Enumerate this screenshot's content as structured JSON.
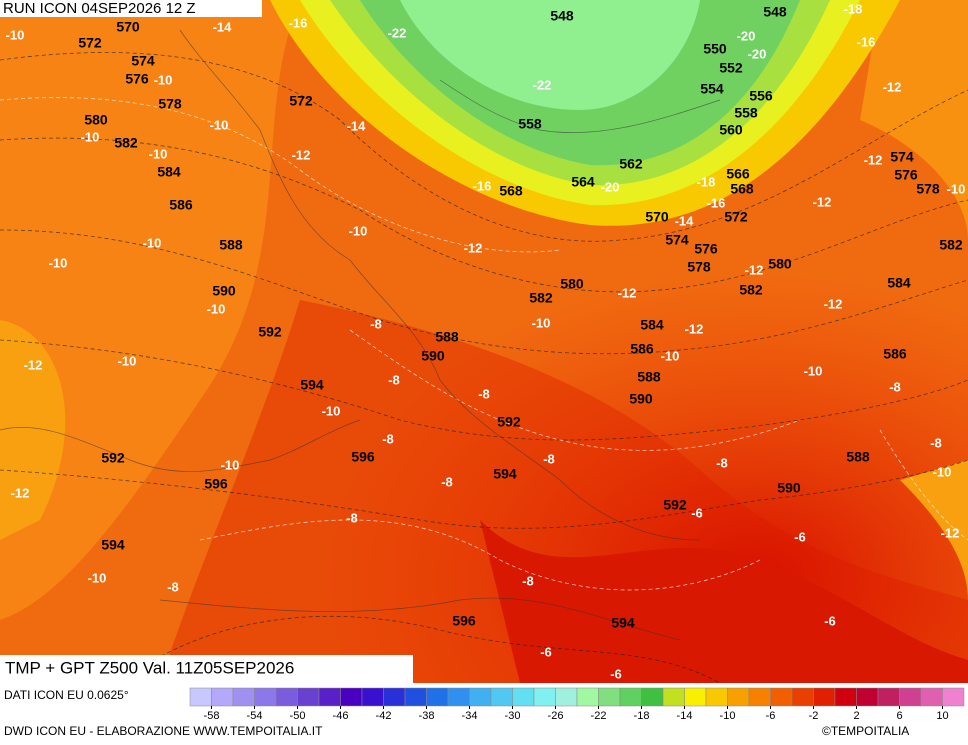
{
  "header": {
    "title": "RUN ICON 04SEP2026 12 Z"
  },
  "footer": {
    "title": "TMP + GPT Z500 Val. 11Z05SEP2026",
    "source": "DATI ICON EU 0.0625°",
    "credit": "DWD ICON EU - ELABORAZIONE WWW.TEMPOITALIA.IT",
    "copyright": "©TEMPOITALIA"
  },
  "legend": {
    "colors": [
      "#c8c8ff",
      "#b4a8f8",
      "#a090f0",
      "#8c78e8",
      "#7a5cdc",
      "#6a40d0",
      "#5a20c8",
      "#4a00c0",
      "#3a10d0",
      "#2a30d8",
      "#2050e0",
      "#2070e8",
      "#3090f0",
      "#40b0f0",
      "#50c8f0",
      "#60e0f0",
      "#80f0f0",
      "#a0f0e0",
      "#a0f8a0",
      "#80e080",
      "#60d060",
      "#40c040",
      "#c0e020",
      "#f8f000",
      "#f8c800",
      "#f8a000",
      "#f88000",
      "#f06000",
      "#e84000",
      "#e02000",
      "#d00010",
      "#c00030",
      "#c02060",
      "#d04090",
      "#e060b0",
      "#f080d0"
    ],
    "ticks": [
      -58,
      -54,
      -50,
      -46,
      -42,
      -38,
      -34,
      -30,
      -26,
      -22,
      -18,
      -14,
      -10,
      -6,
      -2,
      2,
      6,
      10
    ]
  },
  "map": {
    "gpt_labels": [
      548,
      548,
      570,
      572,
      574,
      576,
      578,
      572,
      580,
      582,
      584,
      586,
      550,
      552,
      554,
      556,
      558,
      558,
      560,
      562,
      566,
      568,
      568,
      564,
      570,
      572,
      574,
      576,
      578,
      574,
      576,
      578,
      582,
      588,
      580,
      582,
      580,
      582,
      584,
      590,
      592,
      588,
      590,
      584,
      586,
      588,
      590,
      586,
      594,
      592,
      596,
      592,
      596,
      594,
      592,
      590,
      588,
      594,
      596,
      594
    ],
    "tmp_labels": [
      -10,
      -14,
      -16,
      -22,
      -18,
      -20,
      -20,
      -16,
      -10,
      -22,
      -12,
      -10,
      -14,
      -10,
      -10,
      -12,
      -12,
      -10,
      -16,
      -20,
      -18,
      -16,
      -14,
      -12,
      -10,
      -10,
      -12,
      -10,
      -12,
      -12,
      -10,
      -8,
      -10,
      -12,
      -12,
      -10,
      -10,
      -10,
      -12,
      -8,
      -8,
      -8,
      -10,
      -8,
      -8,
      -10,
      -10,
      -8,
      -8,
      -8,
      -12,
      -8,
      -6,
      -6,
      -12,
      -10,
      -8,
      -8,
      -6,
      -6,
      -6
    ]
  }
}
